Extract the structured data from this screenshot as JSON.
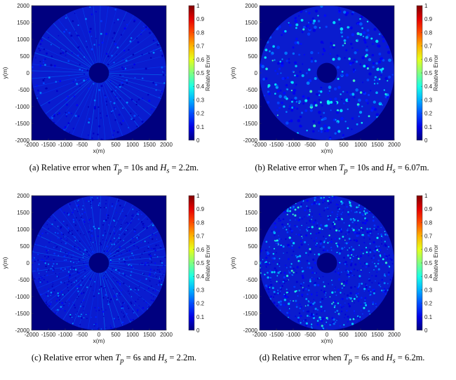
{
  "chart_data": [
    {
      "type": "heatmap",
      "panel_label": "(a)",
      "caption": {
        "prefix": "Relative error when ",
        "tp_symbol": "T",
        "tp_sub": "p",
        "tp_value": " = 10s and ",
        "hs_symbol": "H",
        "hs_sub": "s",
        "hs_value": " = 2.2m."
      },
      "xlabel": "x(m)",
      "ylabel": "y(m)",
      "xlim": [
        -2000,
        2000
      ],
      "ylim": [
        -2000,
        2000
      ],
      "x_ticks": [
        -2000,
        -1500,
        -1000,
        -500,
        0,
        500,
        1000,
        1500,
        2000
      ],
      "y_ticks": [
        2000,
        1500,
        1000,
        500,
        0,
        -500,
        -1000,
        -1500,
        -2000
      ],
      "colorbar": {
        "label": "Relative Error",
        "range": [
          0,
          1
        ],
        "ticks": [
          1,
          0.9,
          0.8,
          0.7,
          0.6,
          0.5,
          0.4,
          0.3,
          0.2,
          0.1,
          0
        ]
      },
      "domain_outer_radius": 2000,
      "domain_inner_radius": 300,
      "error_level": "low",
      "radial_streaks": true
    },
    {
      "type": "heatmap",
      "panel_label": "(b)",
      "caption": {
        "prefix": "Relative error when ",
        "tp_symbol": "T",
        "tp_sub": "p",
        "tp_value": " = 10s and ",
        "hs_symbol": "H",
        "hs_sub": "s",
        "hs_value": " = 6.07m."
      },
      "xlabel": "x(m)",
      "ylabel": "y(m)",
      "xlim": [
        -2000,
        2000
      ],
      "ylim": [
        -2000,
        2000
      ],
      "x_ticks": [
        -2000,
        -1500,
        -1000,
        -500,
        0,
        500,
        1000,
        1500,
        2000
      ],
      "y_ticks": [
        2000,
        1500,
        1000,
        500,
        0,
        -500,
        -1000,
        -1500,
        -2000
      ],
      "colorbar": {
        "label": "Relative Error",
        "range": [
          0,
          1
        ],
        "ticks": [
          1,
          0.9,
          0.8,
          0.7,
          0.6,
          0.5,
          0.4,
          0.3,
          0.2,
          0.1,
          0
        ]
      },
      "domain_outer_radius": 2000,
      "domain_inner_radius": 300,
      "error_level": "medium",
      "radial_streaks": false
    },
    {
      "type": "heatmap",
      "panel_label": "(c)",
      "caption": {
        "prefix": "Relative error when ",
        "tp_symbol": "T",
        "tp_sub": "p",
        "tp_value": " = 6s and ",
        "hs_symbol": "H",
        "hs_sub": "s",
        "hs_value": " = 2.2m."
      },
      "xlabel": "x(m)",
      "ylabel": "y(m)",
      "xlim": [
        -2000,
        2000
      ],
      "ylim": [
        -2000,
        2000
      ],
      "x_ticks": [
        -2000,
        -1500,
        -1000,
        -500,
        0,
        500,
        1000,
        1500,
        2000
      ],
      "y_ticks": [
        2000,
        1500,
        1000,
        500,
        0,
        -500,
        -1000,
        -1500,
        -2000
      ],
      "colorbar": {
        "label": "Relative Error",
        "range": [
          0,
          1
        ],
        "ticks": [
          1,
          0.9,
          0.8,
          0.7,
          0.6,
          0.5,
          0.4,
          0.3,
          0.2,
          0.1,
          0
        ]
      },
      "domain_outer_radius": 2000,
      "domain_inner_radius": 300,
      "error_level": "low-dense",
      "radial_streaks": true
    },
    {
      "type": "heatmap",
      "panel_label": "(d)",
      "caption": {
        "prefix": "Relative error when ",
        "tp_symbol": "T",
        "tp_sub": "p",
        "tp_value": " = 6s and ",
        "hs_symbol": "H",
        "hs_sub": "s",
        "hs_value": " = 6.2m."
      },
      "xlabel": "x(m)",
      "ylabel": "y(m)",
      "xlim": [
        -2000,
        2000
      ],
      "ylim": [
        -2000,
        2000
      ],
      "x_ticks": [
        -2000,
        -1500,
        -1000,
        -500,
        0,
        500,
        1000,
        1500,
        2000
      ],
      "y_ticks": [
        2000,
        1500,
        1000,
        500,
        0,
        -500,
        -1000,
        -1500,
        -2000
      ],
      "colorbar": {
        "label": "Relative Error",
        "range": [
          0,
          1
        ],
        "ticks": [
          1,
          0.9,
          0.8,
          0.7,
          0.6,
          0.5,
          0.4,
          0.3,
          0.2,
          0.1,
          0
        ]
      },
      "domain_outer_radius": 2000,
      "domain_inner_radius": 300,
      "error_level": "medium-dense",
      "radial_streaks": false
    }
  ],
  "colors": {
    "field_background": "#00007f",
    "domain_base": "#0a1ccf",
    "colormap": "jet"
  }
}
